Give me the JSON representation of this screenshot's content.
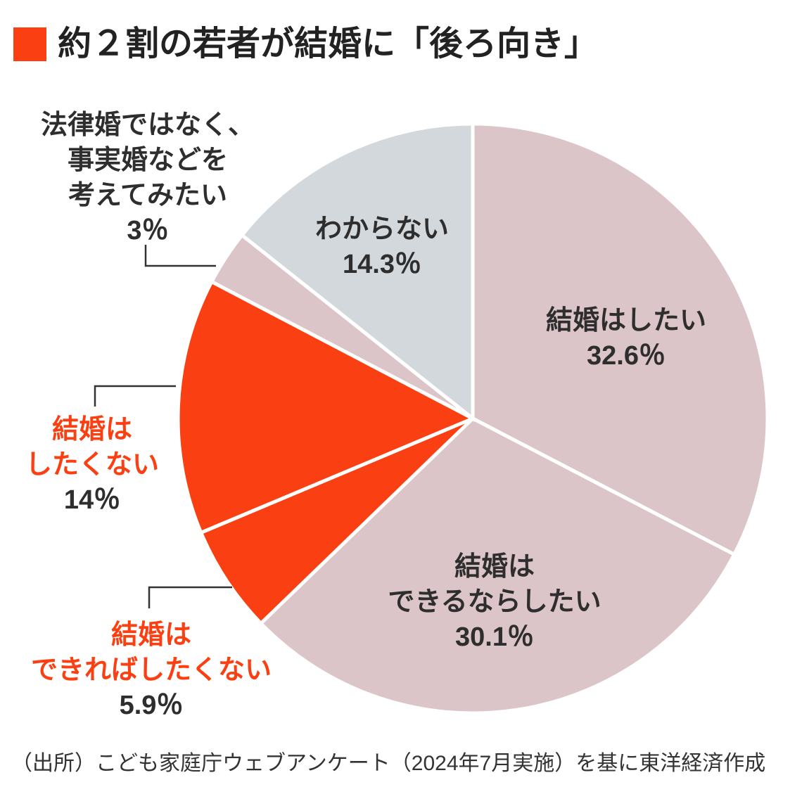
{
  "page": {
    "title": "約２割の若者が結婚に「後ろ向き」",
    "source": "（出所）こども家庭庁ウェブアンケート（2024年7月実施）を基に東洋経済作成"
  },
  "colors": {
    "accent_orange": "#fa4012",
    "dusty_pink": "#dcc5c8",
    "blue_gray": "#d3d8dd",
    "text_dark": "#2e2e2e",
    "connector": "#333333",
    "background": "#ffffff",
    "slice_gap_stroke": "#ffffff"
  },
  "chart_data": {
    "type": "pie",
    "title": "約２割の若者が結婚に「後ろ向き」",
    "unit": "%",
    "start_angle_deg": 0,
    "direction": "clockwise",
    "legend": "none",
    "slices": [
      {
        "key": "want",
        "label": "結婚はしたい",
        "value": 32.6,
        "pct_text": "32.6％",
        "color": "#dcc5c8",
        "label_position": "inside"
      },
      {
        "key": "want-if-possible",
        "label": "結婚はできるならしたい",
        "value": 30.1,
        "pct_text": "30.1％",
        "color": "#dcc5c8",
        "label_position": "inside"
      },
      {
        "key": "rather-not",
        "label": "結婚はできればしたくない",
        "value": 5.9,
        "pct_text": "5.9％",
        "color": "#fa4012",
        "label_position": "outside"
      },
      {
        "key": "not-want",
        "label": "結婚はしたくない",
        "value": 14,
        "pct_text": "14％",
        "color": "#fa4012",
        "label_position": "outside"
      },
      {
        "key": "de-facto",
        "label": "法律婚ではなく、事実婚などを考えてみたい",
        "value": 3,
        "pct_text": "3％",
        "color": "#dcc5c8",
        "label_position": "outside"
      },
      {
        "key": "unknown",
        "label": "わからない",
        "value": 14.3,
        "pct_text": "14.3％",
        "color": "#d3d8dd",
        "label_position": "inside"
      }
    ]
  },
  "labels": {
    "want": {
      "line1": "結婚はしたい",
      "pct": "32.6％"
    },
    "want_if_possible": {
      "line1": "結婚は",
      "line2": "できるならしたい",
      "pct": "30.1％"
    },
    "rather_not": {
      "line1": "結婚は",
      "line2": "できればしたくない",
      "pct": "5.9％"
    },
    "not_want": {
      "line1": "結婚は",
      "line2": "したくない",
      "pct": "14％"
    },
    "de_facto": {
      "line1": "法律婚ではなく、",
      "line2": "事実婚などを",
      "line3": "考えてみたい",
      "pct": "3％"
    },
    "unknown": {
      "line1": "わからない",
      "pct": "14.3％"
    }
  }
}
